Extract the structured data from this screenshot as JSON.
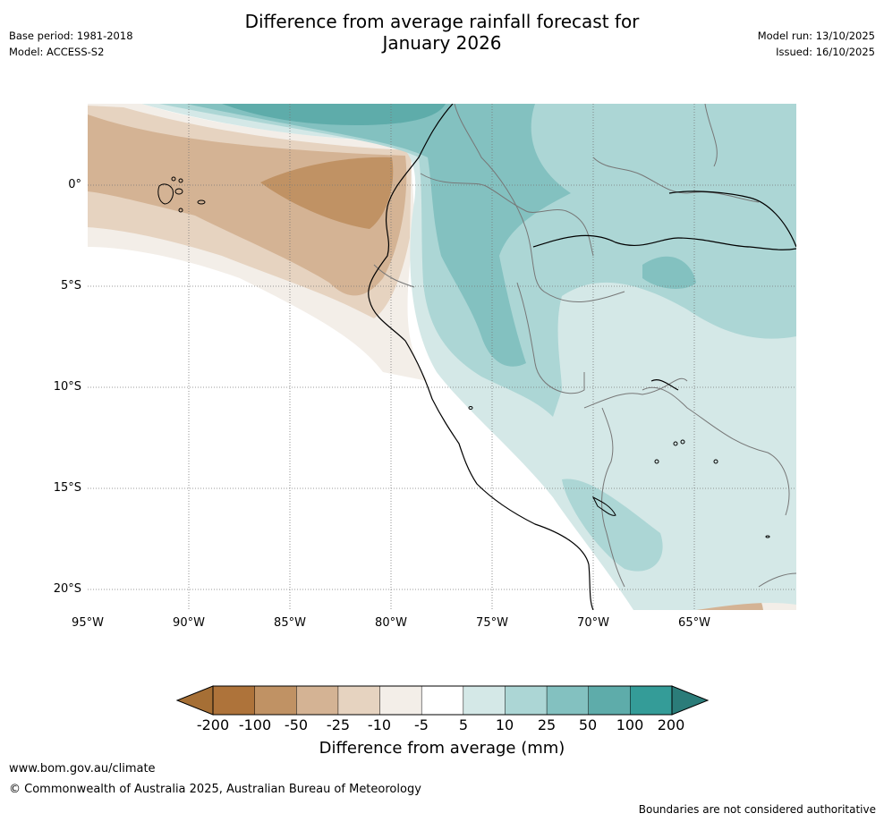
{
  "title_line1": "Difference from average rainfall forecast for",
  "title_line2": "January 2026",
  "base_period": "Base period: 1981-2018",
  "model": "Model: ACCESS-S2",
  "model_run": "Model run: 13/10/2025",
  "issued": "Issued: 16/10/2025",
  "lat_labels": [
    "0°",
    "5°S",
    "10°S",
    "15°S",
    "20°S"
  ],
  "lon_labels": [
    "95°W",
    "90°W",
    "85°W",
    "80°W",
    "75°W",
    "70°W",
    "65°W"
  ],
  "colorbar": {
    "label": "Difference from average (mm)",
    "ticks": [
      "-200",
      "-100",
      "-50",
      "-25",
      "-10",
      "-5",
      "5",
      "10",
      "25",
      "50",
      "100",
      "200"
    ],
    "colors": [
      "#a66f35",
      "#ae733a",
      "#c09264",
      "#d4b394",
      "#e6d3c0",
      "#f3eee8",
      "#ffffff",
      "#d4e8e7",
      "#acd6d5",
      "#83c1c0",
      "#5eacaa",
      "#349c98",
      "#2b7c79"
    ]
  },
  "footer_url": "www.bom.gov.au/climate",
  "footer_copyright": "© Commonwealth of Australia 2025, Australian Bureau of Meteorology",
  "disclaimer": "Boundaries are not considered authoritative"
}
